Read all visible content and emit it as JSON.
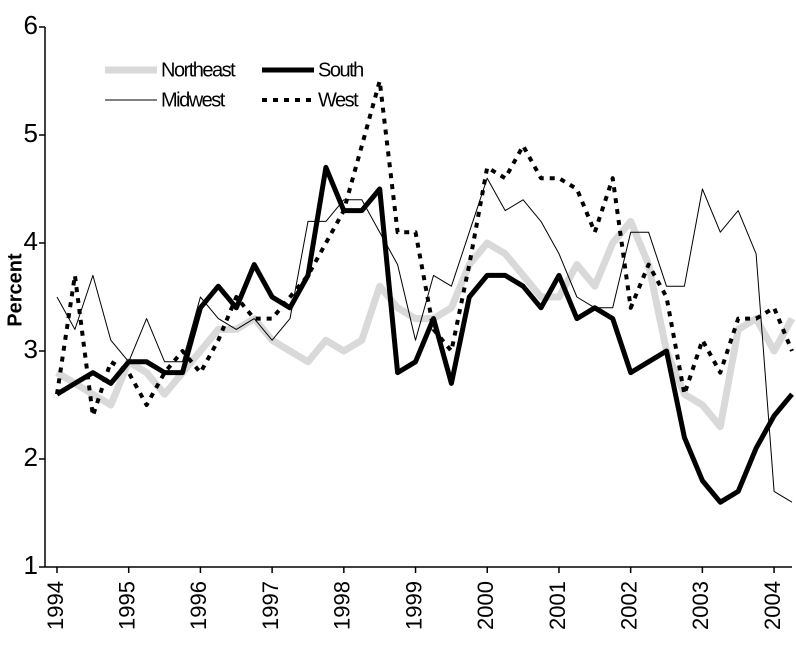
{
  "chart_data": {
    "type": "line",
    "y_label": "Percent",
    "categories": [
      "1994",
      null,
      null,
      null,
      "1995",
      null,
      null,
      null,
      "1996",
      null,
      null,
      null,
      "1997",
      null,
      null,
      null,
      "1998",
      null,
      null,
      null,
      "1999",
      null,
      null,
      null,
      "2000",
      null,
      null,
      null,
      "2001",
      null,
      null,
      null,
      "2002",
      null,
      null,
      null,
      "2003",
      null,
      null,
      null,
      "2004",
      null
    ],
    "series": [
      {
        "name": "Northeast",
        "color": "#d9d9d9",
        "line_width": 7,
        "dash": false,
        "values": [
          2.8,
          2.7,
          2.6,
          2.5,
          2.9,
          2.8,
          2.6,
          2.8,
          3.0,
          3.2,
          3.2,
          3.3,
          3.1,
          3.0,
          2.9,
          3.1,
          3.0,
          3.1,
          3.6,
          3.4,
          3.3,
          3.3,
          3.4,
          3.8,
          4.0,
          3.9,
          3.7,
          3.5,
          3.5,
          3.8,
          3.6,
          4.0,
          4.2,
          3.8,
          3.0,
          2.6,
          2.5,
          2.3,
          3.2,
          3.3,
          3.0,
          3.3
        ]
      },
      {
        "name": "South",
        "color": "#000000",
        "line_width": 5,
        "dash": false,
        "values": [
          2.6,
          2.7,
          2.8,
          2.7,
          2.9,
          2.9,
          2.8,
          2.8,
          3.4,
          3.6,
          3.4,
          3.8,
          3.5,
          3.4,
          3.7,
          4.7,
          4.3,
          4.3,
          4.5,
          2.8,
          2.9,
          3.3,
          2.7,
          3.5,
          3.7,
          3.7,
          3.6,
          3.4,
          3.7,
          3.3,
          3.4,
          3.3,
          2.8,
          2.9,
          3.0,
          2.2,
          1.8,
          1.6,
          1.7,
          2.1,
          2.4,
          2.6
        ]
      },
      {
        "name": "Midwest",
        "color": "#000000",
        "line_width": 1,
        "dash": false,
        "values": [
          3.5,
          3.2,
          3.7,
          3.1,
          2.9,
          3.3,
          2.9,
          2.9,
          3.5,
          3.3,
          3.2,
          3.3,
          3.1,
          3.3,
          4.2,
          4.2,
          4.4,
          4.4,
          4.1,
          3.8,
          3.1,
          3.7,
          3.6,
          4.1,
          4.6,
          4.3,
          4.4,
          4.2,
          3.9,
          3.5,
          3.4,
          3.4,
          4.1,
          4.1,
          3.6,
          3.6,
          4.5,
          4.1,
          4.3,
          3.9,
          1.7,
          1.6
        ]
      },
      {
        "name": "West",
        "color": "#000000",
        "line_width": 4,
        "dash": true,
        "values": [
          2.6,
          3.7,
          2.4,
          2.9,
          2.8,
          2.5,
          2.8,
          3.0,
          2.8,
          3.1,
          3.5,
          3.3,
          3.3,
          3.5,
          3.7,
          4.0,
          4.3,
          4.9,
          5.5,
          4.1,
          4.1,
          3.2,
          3.0,
          3.8,
          4.7,
          4.6,
          4.9,
          4.6,
          4.6,
          4.5,
          4.1,
          4.6,
          3.4,
          3.8,
          3.5,
          2.6,
          3.1,
          2.8,
          3.3,
          3.3,
          3.4,
          3.0
        ]
      }
    ],
    "ylim": [
      1,
      6
    ],
    "yticks": [
      1,
      2,
      3,
      4,
      5,
      6
    ],
    "grid": false
  }
}
